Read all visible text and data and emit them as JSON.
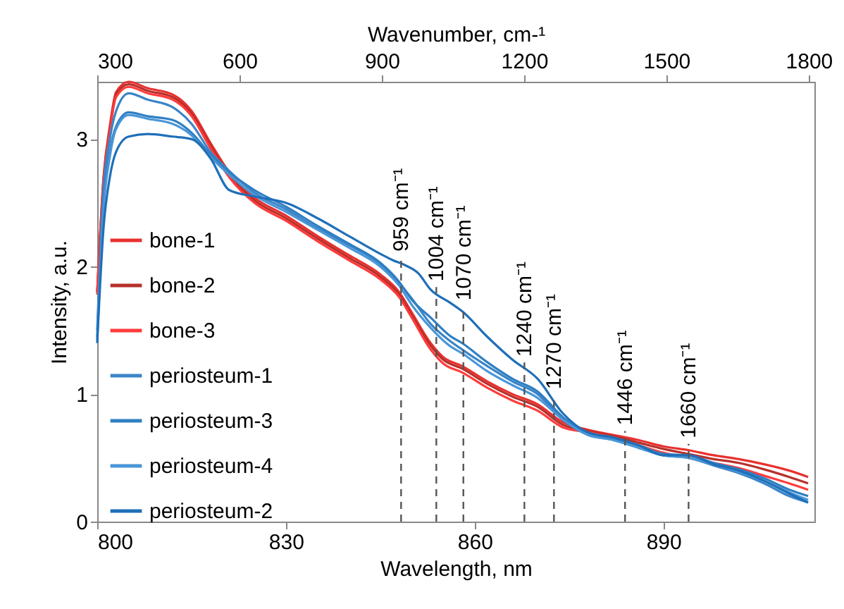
{
  "chart_data": {
    "type": "line",
    "xlabel": "Wavelength, nm",
    "ylabel": "Intensity, a.u.",
    "x2label": "Wavenumber, cm-¹",
    "xlim": [
      800,
      914
    ],
    "xticks": [
      800,
      830,
      860,
      890
    ],
    "x2lim": [
      300,
      1812
    ],
    "x2ticks": [
      300,
      600,
      900,
      1200,
      1500,
      1800
    ],
    "ylim": [
      0,
      3.45
    ],
    "yticks": [
      0,
      1,
      2,
      3
    ],
    "grid": false,
    "legend": "left",
    "line_style": "solid",
    "marker": "none",
    "series": [
      {
        "name": "bone-1",
        "color": "#e8312f",
        "x": [
          800,
          801,
          802,
          803,
          805,
          808,
          812,
          815,
          818,
          821,
          825,
          830,
          835,
          840,
          845,
          848,
          850,
          853,
          855,
          858,
          862,
          866,
          870,
          874,
          878,
          882,
          886,
          890,
          894,
          898,
          902,
          906,
          910,
          913
        ],
        "values": [
          1.8,
          2.7,
          3.1,
          3.37,
          3.45,
          3.4,
          3.35,
          3.22,
          2.97,
          2.74,
          2.54,
          2.4,
          2.24,
          2.09,
          1.94,
          1.8,
          1.64,
          1.4,
          1.29,
          1.22,
          1.1,
          1.0,
          0.92,
          0.78,
          0.72,
          0.68,
          0.64,
          0.59,
          0.56,
          0.52,
          0.49,
          0.45,
          0.4,
          0.35
        ]
      },
      {
        "name": "bone-2",
        "color": "#b8302a",
        "x": [
          800,
          801,
          802,
          803,
          805,
          808,
          812,
          815,
          818,
          821,
          825,
          830,
          835,
          840,
          845,
          848,
          850,
          853,
          855,
          858,
          862,
          866,
          870,
          874,
          878,
          882,
          886,
          890,
          894,
          898,
          902,
          906,
          910,
          913
        ],
        "values": [
          1.8,
          2.68,
          3.08,
          3.35,
          3.43,
          3.38,
          3.33,
          3.2,
          2.95,
          2.72,
          2.52,
          2.38,
          2.22,
          2.07,
          1.92,
          1.78,
          1.62,
          1.38,
          1.27,
          1.2,
          1.08,
          0.98,
          0.9,
          0.76,
          0.71,
          0.67,
          0.62,
          0.57,
          0.53,
          0.49,
          0.46,
          0.41,
          0.35,
          0.3
        ]
      },
      {
        "name": "bone-3",
        "color": "#ff3b3b",
        "x": [
          800,
          801,
          802,
          803,
          805,
          808,
          812,
          815,
          818,
          821,
          825,
          830,
          835,
          840,
          845,
          848,
          850,
          853,
          855,
          858,
          862,
          866,
          870,
          874,
          878,
          882,
          886,
          890,
          894,
          898,
          902,
          906,
          910,
          913
        ],
        "values": [
          1.78,
          2.66,
          3.06,
          3.33,
          3.41,
          3.36,
          3.31,
          3.18,
          2.93,
          2.7,
          2.5,
          2.36,
          2.2,
          2.05,
          1.9,
          1.76,
          1.6,
          1.35,
          1.24,
          1.17,
          1.05,
          0.95,
          0.87,
          0.74,
          0.7,
          0.66,
          0.6,
          0.54,
          0.5,
          0.46,
          0.42,
          0.36,
          0.3,
          0.25
        ]
      },
      {
        "name": "periosteum-1",
        "color": "#3a85c8",
        "x": [
          800,
          801,
          802,
          803,
          805,
          808,
          812,
          815,
          818,
          821,
          825,
          830,
          835,
          840,
          845,
          848,
          850,
          853,
          856,
          858,
          862,
          866,
          870,
          874,
          878,
          882,
          886,
          890,
          894,
          898,
          902,
          906,
          910,
          913
        ],
        "values": [
          1.5,
          2.6,
          3.0,
          3.22,
          3.36,
          3.31,
          3.25,
          3.12,
          2.9,
          2.75,
          2.58,
          2.45,
          2.3,
          2.17,
          2.02,
          1.87,
          1.75,
          1.55,
          1.42,
          1.35,
          1.22,
          1.1,
          1.0,
          0.8,
          0.68,
          0.64,
          0.58,
          0.52,
          0.5,
          0.44,
          0.38,
          0.3,
          0.2,
          0.15
        ]
      },
      {
        "name": "periosteum-3",
        "color": "#2f7fc2",
        "x": [
          800,
          801,
          802,
          803,
          805,
          808,
          812,
          815,
          818,
          821,
          825,
          830,
          835,
          840,
          845,
          848,
          850,
          853,
          856,
          858,
          862,
          866,
          870,
          874,
          878,
          882,
          886,
          890,
          894,
          898,
          902,
          906,
          910,
          913
        ],
        "values": [
          1.45,
          2.5,
          2.9,
          3.1,
          3.21,
          3.18,
          3.15,
          3.05,
          2.88,
          2.74,
          2.6,
          2.47,
          2.32,
          2.18,
          2.03,
          1.88,
          1.74,
          1.6,
          1.46,
          1.4,
          1.25,
          1.12,
          1.02,
          0.82,
          0.69,
          0.65,
          0.6,
          0.53,
          0.52,
          0.46,
          0.41,
          0.34,
          0.25,
          0.2
        ]
      },
      {
        "name": "periosteum-4",
        "color": "#4a96d8",
        "x": [
          800,
          801,
          802,
          803,
          805,
          808,
          812,
          815,
          818,
          821,
          825,
          830,
          835,
          840,
          845,
          848,
          850,
          853,
          856,
          858,
          862,
          866,
          870,
          874,
          878,
          882,
          886,
          890,
          894,
          898,
          902,
          906,
          910,
          913
        ],
        "values": [
          1.42,
          2.45,
          2.86,
          3.08,
          3.19,
          3.16,
          3.12,
          3.03,
          2.86,
          2.72,
          2.56,
          2.43,
          2.29,
          2.15,
          2.0,
          1.85,
          1.7,
          1.52,
          1.38,
          1.32,
          1.18,
          1.07,
          0.97,
          0.8,
          0.68,
          0.64,
          0.58,
          0.52,
          0.5,
          0.45,
          0.39,
          0.32,
          0.23,
          0.17
        ]
      },
      {
        "name": "periosteum-2",
        "color": "#1f6fb8",
        "x": [
          800,
          801,
          802,
          803,
          805,
          808,
          812,
          815,
          818,
          821,
          825,
          830,
          835,
          840,
          845,
          847,
          849,
          851,
          853,
          856,
          858,
          862,
          866,
          870,
          874,
          878,
          882,
          886,
          890,
          894,
          898,
          902,
          906,
          910,
          913
        ],
        "values": [
          1.4,
          2.3,
          2.7,
          2.9,
          3.02,
          3.04,
          3.02,
          3.0,
          2.85,
          2.6,
          2.55,
          2.5,
          2.38,
          2.24,
          2.1,
          2.05,
          2.01,
          1.95,
          1.82,
          1.72,
          1.65,
          1.45,
          1.27,
          1.12,
          0.85,
          0.7,
          0.66,
          0.6,
          0.52,
          0.52,
          0.45,
          0.4,
          0.32,
          0.22,
          0.15
        ]
      }
    ],
    "ref_lines": [
      {
        "axis": "x",
        "value": 848.3,
        "label": "959 cm⁻¹",
        "color": "#555555",
        "line_style": "dashed"
      },
      {
        "axis": "x",
        "value": 853.9,
        "label": "1004 cm⁻¹",
        "color": "#555555",
        "line_style": "dashed"
      },
      {
        "axis": "x",
        "value": 858.2,
        "label": "1070 cm⁻¹",
        "color": "#555555",
        "line_style": "dashed"
      },
      {
        "axis": "x",
        "value": 867.9,
        "label": "1240 cm⁻¹",
        "color": "#555555",
        "line_style": "dashed"
      },
      {
        "axis": "x",
        "value": 872.6,
        "label": "1270 cm⁻¹",
        "color": "#555555",
        "line_style": "dashed"
      },
      {
        "axis": "x",
        "value": 883.9,
        "label": "1446 cm⁻¹",
        "color": "#555555",
        "line_style": "dashed"
      },
      {
        "axis": "x",
        "value": 894.0,
        "label": "1660 cm⁻¹",
        "color": "#555555",
        "line_style": "dashed"
      }
    ]
  }
}
